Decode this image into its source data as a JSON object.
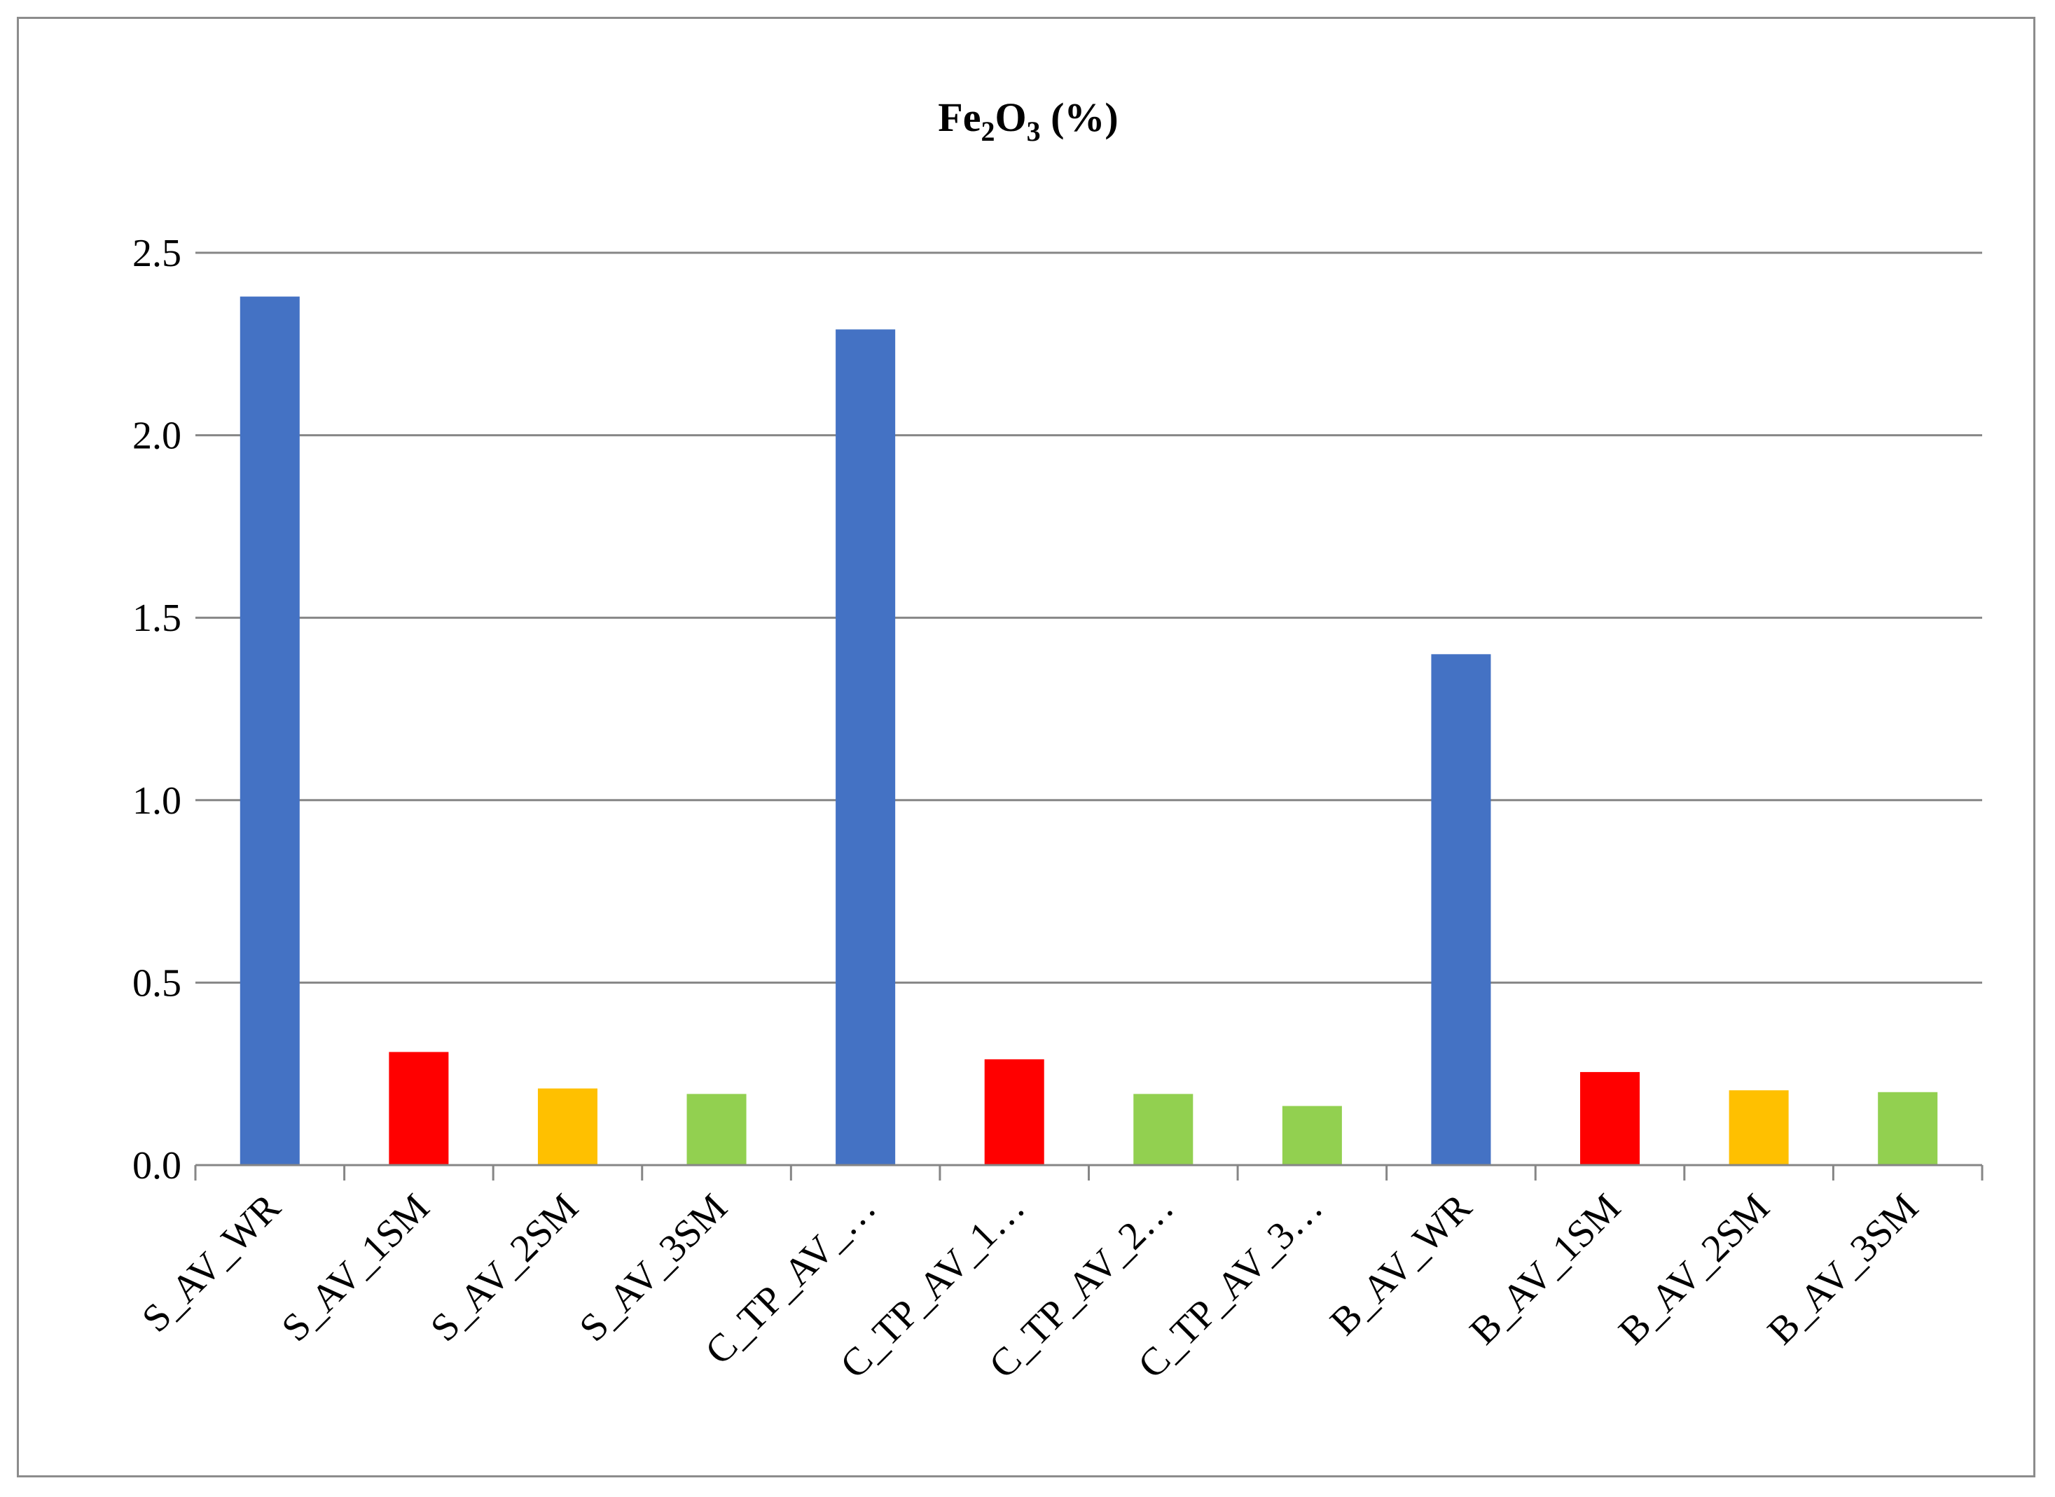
{
  "chart_data": {
    "type": "bar",
    "title": {
      "prefix": "Fe",
      "sub1": "2",
      "mid": "O",
      "sub2": "3",
      "suffix": " (%)"
    },
    "xlabel": "",
    "ylabel": "",
    "ylim": [
      0,
      2.5
    ],
    "yticks": [
      "0.0",
      "0.5",
      "1.0",
      "1.5",
      "2.0",
      "2.5"
    ],
    "ytick_values": [
      0,
      0.5,
      1.0,
      1.5,
      2.0,
      2.5
    ],
    "grid": true,
    "legend": "none",
    "categories": [
      "S_AV_WR",
      "S_AV_1SM",
      "S_AV_2SM",
      "S_AV_3SM",
      "C_TP_AV_…",
      "C_TP_AV_1…",
      "C_TP_AV_2…",
      "C_TP_AV_3…",
      "B_AV_WR",
      "B_AV_1SM",
      "B_AV_2SM",
      "B_AV_3SM"
    ],
    "values": [
      2.38,
      0.31,
      0.21,
      0.195,
      2.29,
      0.29,
      0.195,
      0.162,
      1.4,
      0.255,
      0.205,
      0.2
    ],
    "colors": [
      "#4472C4",
      "#FF0000",
      "#FFC000",
      "#92D050",
      "#4472C4",
      "#FF0000",
      "#92D050",
      "#92D050",
      "#4472C4",
      "#FF0000",
      "#FFC000",
      "#92D050"
    ],
    "gridline_color": "#868686",
    "axis_color": "#868686"
  }
}
